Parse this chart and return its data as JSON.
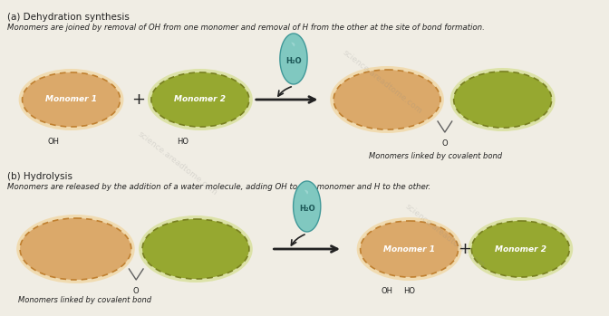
{
  "bg_color": "#f0ede4",
  "title_a": "(a) Dehydration synthesis",
  "desc_a": "Monomers are joined by removal of OH from one monomer and removal of H from the other at the site of bond formation.",
  "title_b": "(b) Hydrolysis",
  "desc_b": "Monomers are released by the addition of a water molecule, adding OH to one monomer and H to the other.",
  "monomer1_color": "#dba96a",
  "monomer2_color": "#96a830",
  "monomer1_border": "#c08030",
  "monomer2_border": "#788020",
  "monomer1_glow": "#f0d090",
  "monomer2_glow": "#d0dc80",
  "water_color": "#80c8c0",
  "water_border": "#409898",
  "water_top": "#a8dcd8",
  "text_color": "#222222",
  "arrow_color": "#222222",
  "bond_color": "#606060",
  "label_fontsize": 7,
  "title_fontsize": 7.5,
  "desc_fontsize": 6.2
}
